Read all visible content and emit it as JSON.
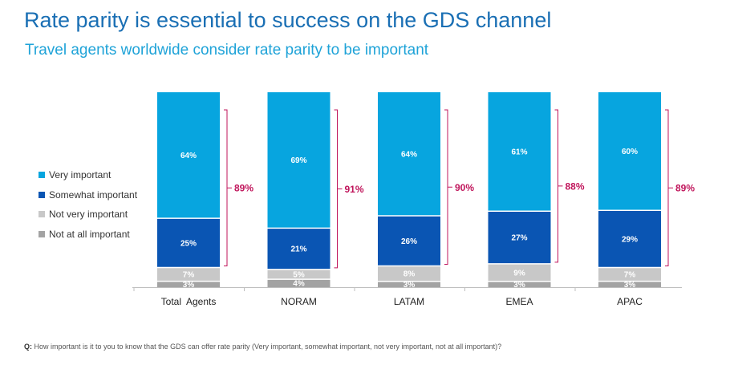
{
  "title": "Rate parity is essential to success on the GDS channel",
  "subtitle": "Travel agents worldwide consider rate parity to be important",
  "colors": {
    "very_important": "#07a5df",
    "somewhat_important": "#0a55b3",
    "not_very_important": "#c8c8c8",
    "not_at_all_important": "#a3a3a3",
    "bracket": "#c0155b"
  },
  "chart_data": {
    "type": "bar",
    "stacked": true,
    "title": "",
    "xlabel": "",
    "ylabel": "",
    "ylim": [
      0,
      100
    ],
    "legend_position": "left",
    "categories": [
      "Total  Agents",
      "NORAM",
      "LATAM",
      "EMEA",
      "APAC"
    ],
    "series": [
      {
        "name": "Very important",
        "values": [
          64,
          69,
          64,
          61,
          60
        ],
        "labels": [
          "64%",
          "69%",
          "64%",
          "61%",
          "60%"
        ]
      },
      {
        "name": "Somewhat important",
        "values": [
          25,
          21,
          26,
          27,
          29
        ],
        "labels": [
          "25%",
          "21%",
          "26%",
          "27%",
          "29%"
        ]
      },
      {
        "name": "Not very important",
        "values": [
          7,
          5,
          8,
          9,
          7
        ],
        "labels": [
          "7%",
          "5%",
          "8%",
          "9%",
          "7%"
        ]
      },
      {
        "name": "Not at all important",
        "values": [
          3,
          4,
          3,
          3,
          3
        ],
        "labels": [
          "3%",
          "4%",
          "3%",
          "3%",
          "3%"
        ]
      }
    ],
    "top2_totals": [
      "89%",
      "91%",
      "90%",
      "88%",
      "89%"
    ]
  },
  "footnote": {
    "prefix": "Q:",
    "text": " How important is it to you to know that the GDS can offer rate parity (Very important, somewhat important, not very important, not at all important)?"
  }
}
